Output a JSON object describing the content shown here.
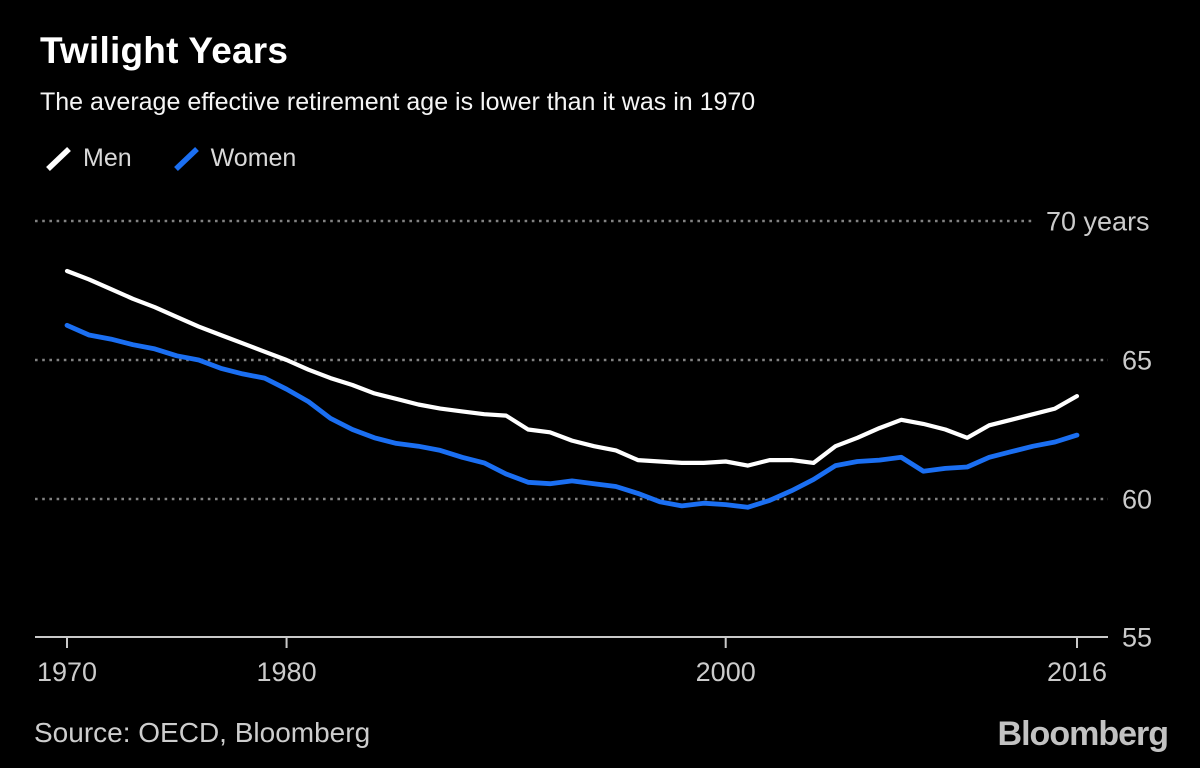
{
  "header": {
    "title": "Twilight Years",
    "subtitle": "The average effective retirement age is lower than it was in 1970"
  },
  "legend": {
    "items": [
      {
        "label": "Men",
        "color": "#ffffff"
      },
      {
        "label": "Women",
        "color": "#1b6ff2"
      }
    ]
  },
  "footer": {
    "source": "Source: OECD, Bloomberg",
    "logo": "Bloomberg"
  },
  "colors": {
    "background": "#000000",
    "men_line": "#ffffff",
    "women_line": "#1b6ff2",
    "gridline": "#828282",
    "axis": "#c9c9c9",
    "axis_label": "#cbcbcb"
  },
  "chart_data": {
    "type": "line",
    "title": "Twilight Years",
    "subtitle": "The average effective retirement age is lower than it was in 1970",
    "xlabel": "",
    "ylabel": "years",
    "xlim": [
      1970,
      2016
    ],
    "ylim": [
      55,
      70
    ],
    "grid": "horizontal-dotted",
    "legend_position": "top-left",
    "x": [
      1970,
      1971,
      1972,
      1973,
      1974,
      1975,
      1976,
      1977,
      1978,
      1979,
      1980,
      1981,
      1982,
      1983,
      1984,
      1985,
      1986,
      1987,
      1988,
      1989,
      1990,
      1991,
      1992,
      1993,
      1994,
      1995,
      1996,
      1997,
      1998,
      1999,
      2000,
      2001,
      2002,
      2003,
      2004,
      2005,
      2006,
      2007,
      2008,
      2009,
      2010,
      2011,
      2012,
      2013,
      2014,
      2015,
      2016
    ],
    "series": [
      {
        "name": "Men",
        "color": "#ffffff",
        "values": [
          68.2,
          67.9,
          67.55,
          67.2,
          66.9,
          66.55,
          66.2,
          65.9,
          65.6,
          65.3,
          65.0,
          64.65,
          64.35,
          64.1,
          63.8,
          63.6,
          63.4,
          63.25,
          63.15,
          63.05,
          63.0,
          62.5,
          62.4,
          62.1,
          61.9,
          61.75,
          61.4,
          61.35,
          61.3,
          61.3,
          61.35,
          61.2,
          61.4,
          61.4,
          61.3,
          61.9,
          62.2,
          62.55,
          62.85,
          62.7,
          62.5,
          62.2,
          62.65,
          62.85,
          63.05,
          63.25,
          63.7
        ]
      },
      {
        "name": "Women",
        "color": "#1b6ff2",
        "values": [
          66.25,
          65.9,
          65.75,
          65.55,
          65.4,
          65.15,
          65.0,
          64.7,
          64.5,
          64.35,
          63.95,
          63.5,
          62.9,
          62.5,
          62.2,
          62.0,
          61.9,
          61.75,
          61.5,
          61.3,
          60.9,
          60.6,
          60.55,
          60.65,
          60.55,
          60.45,
          60.2,
          59.9,
          59.75,
          59.85,
          59.8,
          59.7,
          59.95,
          60.3,
          60.7,
          61.2,
          61.35,
          61.4,
          61.5,
          61.0,
          61.1,
          61.15,
          61.5,
          61.7,
          61.9,
          62.05,
          62.3
        ]
      }
    ],
    "yticks": [
      {
        "value": 70,
        "label": "70 years"
      },
      {
        "value": 65,
        "label": "65"
      },
      {
        "value": 60,
        "label": "60"
      },
      {
        "value": 55,
        "label": "55"
      }
    ],
    "xticks": [
      {
        "value": 1970,
        "label": "1970"
      },
      {
        "value": 1980,
        "label": "1980"
      },
      {
        "value": 2000,
        "label": "2000"
      },
      {
        "value": 2016,
        "label": "2016"
      }
    ]
  }
}
